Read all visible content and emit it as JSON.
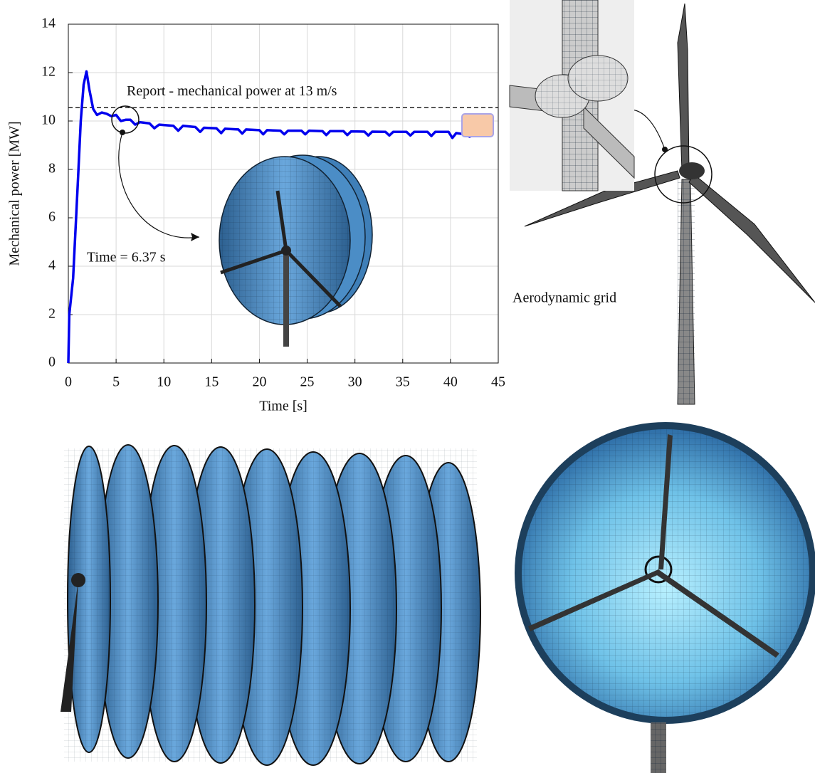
{
  "chart_data": {
    "type": "line",
    "xlabel": "Time [s]",
    "ylabel": "Mechanical power [MW]",
    "x": [
      0,
      0.1,
      0.5,
      1.0,
      1.3,
      1.6,
      1.9,
      2.2,
      2.6,
      3.0,
      3.5,
      4.0,
      4.5,
      5.0,
      5.5,
      6.0,
      6.5,
      7.0,
      7.5,
      8.5,
      9.0,
      9.5,
      11.0,
      11.5,
      12.0,
      13.3,
      13.8,
      14.2,
      15.5,
      16.0,
      16.4,
      17.8,
      18.2,
      18.6,
      20.0,
      20.4,
      20.8,
      22.2,
      22.6,
      23.0,
      24.4,
      24.8,
      25.2,
      26.6,
      27.0,
      27.4,
      28.8,
      29.2,
      29.6,
      31.0,
      31.4,
      31.8,
      33.2,
      33.6,
      34.0,
      35.4,
      35.8,
      36.2,
      37.6,
      38.0,
      38.4,
      39.8,
      40.2,
      40.6,
      41.5,
      42.0,
      42.5
    ],
    "series": [
      {
        "color": "#0000ee",
        "values": [
          0,
          2,
          3.5,
          7.5,
          10,
          11.5,
          12.05,
          11.3,
          10.5,
          10.25,
          10.35,
          10.3,
          10.2,
          10.25,
          10.0,
          10.05,
          10.05,
          9.85,
          9.95,
          9.9,
          9.7,
          9.85,
          9.8,
          9.6,
          9.8,
          9.75,
          9.55,
          9.72,
          9.7,
          9.5,
          9.68,
          9.65,
          9.48,
          9.65,
          9.62,
          9.45,
          9.62,
          9.6,
          9.45,
          9.6,
          9.6,
          9.45,
          9.6,
          9.58,
          9.42,
          9.58,
          9.58,
          9.42,
          9.57,
          9.56,
          9.4,
          9.56,
          9.55,
          9.4,
          9.55,
          9.55,
          9.4,
          9.55,
          9.55,
          9.38,
          9.55,
          9.55,
          9.3,
          9.5,
          9.45,
          9.35,
          9.45
        ]
      }
    ],
    "reference_line": {
      "value": 10.55,
      "label": "Report - mechanical power at 13 m/s"
    },
    "annotations": [
      "Time = 6.37 s",
      "Aerodynamic grid"
    ],
    "xlim": [
      0,
      45
    ],
    "xticks": [
      0,
      5,
      10,
      15,
      20,
      25,
      30,
      35,
      40,
      45
    ],
    "ylim": [
      0,
      14
    ],
    "yticks": [
      0,
      2,
      4,
      6,
      8,
      10,
      12,
      14
    ],
    "grid": true
  }
}
